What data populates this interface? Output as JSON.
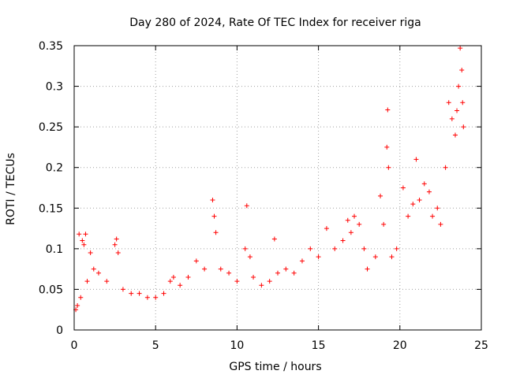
{
  "chart_data": {
    "type": "scatter",
    "title": "Day 280 of 2024, Rate Of TEC Index for receiver riga",
    "xlabel": "GPS time / hours",
    "ylabel": "ROTI / TECUs",
    "xlim": [
      0,
      25
    ],
    "ylim": [
      0,
      0.35
    ],
    "xticks": [
      0,
      5,
      10,
      15,
      20,
      25
    ],
    "xtick_labels": [
      "0",
      "5",
      "10",
      "15",
      "20",
      "25"
    ],
    "yticks": [
      0,
      0.05,
      0.1,
      0.15,
      0.2,
      0.25,
      0.3,
      0.35
    ],
    "ytick_labels": [
      "0",
      "0.05",
      "0.1",
      "0.15",
      "0.2",
      "0.25",
      "0.3",
      "0.35"
    ],
    "grid": true,
    "marker": "+",
    "color": "#ff0000",
    "series": [
      {
        "points": [
          [
            0.1,
            0.025
          ],
          [
            0.2,
            0.03
          ],
          [
            0.3,
            0.118
          ],
          [
            0.4,
            0.04
          ],
          [
            0.5,
            0.11
          ],
          [
            0.6,
            0.105
          ],
          [
            0.7,
            0.118
          ],
          [
            0.8,
            0.06
          ],
          [
            1.0,
            0.095
          ],
          [
            1.2,
            0.075
          ],
          [
            1.5,
            0.07
          ],
          [
            2.0,
            0.06
          ],
          [
            2.5,
            0.105
          ],
          [
            2.6,
            0.112
          ],
          [
            2.7,
            0.095
          ],
          [
            3.0,
            0.05
          ],
          [
            3.5,
            0.045
          ],
          [
            4.0,
            0.045
          ],
          [
            4.5,
            0.04
          ],
          [
            5.0,
            0.04
          ],
          [
            5.5,
            0.045
          ],
          [
            5.9,
            0.06
          ],
          [
            6.1,
            0.065
          ],
          [
            6.5,
            0.055
          ],
          [
            7.0,
            0.065
          ],
          [
            7.5,
            0.085
          ],
          [
            8.0,
            0.075
          ],
          [
            8.5,
            0.16
          ],
          [
            8.6,
            0.14
          ],
          [
            8.7,
            0.12
          ],
          [
            9.0,
            0.075
          ],
          [
            9.5,
            0.07
          ],
          [
            10.0,
            0.06
          ],
          [
            10.5,
            0.1
          ],
          [
            10.6,
            0.153
          ],
          [
            10.8,
            0.09
          ],
          [
            11.0,
            0.065
          ],
          [
            11.5,
            0.055
          ],
          [
            12.0,
            0.06
          ],
          [
            12.3,
            0.112
          ],
          [
            12.5,
            0.07
          ],
          [
            13.0,
            0.075
          ],
          [
            13.5,
            0.07
          ],
          [
            14.0,
            0.085
          ],
          [
            14.5,
            0.1
          ],
          [
            15.0,
            0.09
          ],
          [
            15.5,
            0.125
          ],
          [
            16.0,
            0.1
          ],
          [
            16.5,
            0.11
          ],
          [
            16.8,
            0.135
          ],
          [
            17.0,
            0.12
          ],
          [
            17.2,
            0.14
          ],
          [
            17.5,
            0.13
          ],
          [
            17.8,
            0.1
          ],
          [
            18.0,
            0.075
          ],
          [
            18.5,
            0.09
          ],
          [
            18.8,
            0.165
          ],
          [
            19.0,
            0.13
          ],
          [
            19.2,
            0.225
          ],
          [
            19.25,
            0.271
          ],
          [
            19.3,
            0.2
          ],
          [
            19.5,
            0.09
          ],
          [
            19.8,
            0.1
          ],
          [
            20.2,
            0.175
          ],
          [
            20.5,
            0.14
          ],
          [
            20.8,
            0.155
          ],
          [
            21.0,
            0.21
          ],
          [
            21.2,
            0.16
          ],
          [
            21.5,
            0.18
          ],
          [
            21.8,
            0.17
          ],
          [
            22.0,
            0.14
          ],
          [
            22.3,
            0.15
          ],
          [
            22.5,
            0.13
          ],
          [
            22.8,
            0.2
          ],
          [
            23.0,
            0.28
          ],
          [
            23.2,
            0.26
          ],
          [
            23.4,
            0.24
          ],
          [
            23.5,
            0.27
          ],
          [
            23.6,
            0.3
          ],
          [
            23.7,
            0.347
          ],
          [
            23.8,
            0.32
          ],
          [
            23.85,
            0.28
          ],
          [
            23.9,
            0.25
          ]
        ]
      }
    ]
  }
}
